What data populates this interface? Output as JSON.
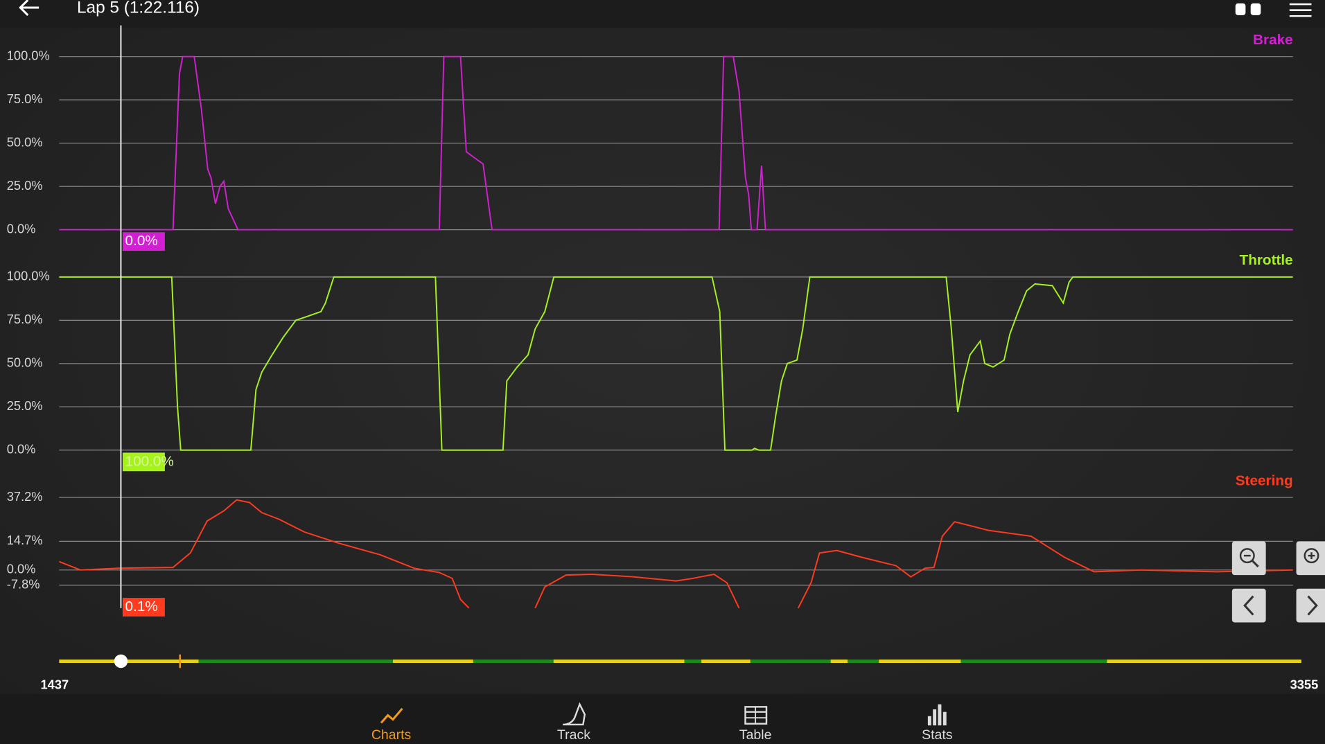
{
  "header": {
    "title": "Lap 5 (1:22.116)"
  },
  "cursor": {
    "x": 1533
  },
  "range": [
    1437,
    3355
  ],
  "nav": [
    "Charts",
    "Track",
    "Table",
    "Stats"
  ],
  "chart_data": [
    {
      "type": "line",
      "title": "Brake",
      "color": "#d21fd2",
      "xlim": [
        1437,
        3355
      ],
      "ylim": [
        0,
        100
      ],
      "yticks": [
        {
          "value": 0,
          "label": "0.0%"
        },
        {
          "value": 25,
          "label": "25.0%"
        },
        {
          "value": 50,
          "label": "50.0%"
        },
        {
          "value": 75,
          "label": "75.0%"
        },
        {
          "value": 100,
          "label": "100.0%"
        }
      ],
      "x": [
        1437,
        1614,
        1624,
        1629,
        1647,
        1658,
        1668,
        1673,
        1680,
        1687,
        1693,
        1700,
        1715,
        2028,
        2035,
        2061,
        2070,
        2081,
        2096,
        2110,
        2463,
        2470,
        2485,
        2494,
        2498,
        2504,
        2509,
        2513,
        2522,
        2529,
        2535,
        3355
      ],
      "values": [
        0,
        0,
        90,
        100,
        100,
        70,
        35,
        30,
        15,
        25,
        28,
        12,
        0,
        0,
        100,
        100,
        45,
        42,
        38,
        0,
        0,
        100,
        100,
        80,
        60,
        30,
        20,
        0,
        0,
        37,
        0,
        0
      ],
      "cursor": {
        "value": 0,
        "label": "0.0%"
      }
    },
    {
      "type": "line",
      "title": "Throttle",
      "color": "#a6f21d",
      "xlim": [
        1437,
        3355
      ],
      "ylim": [
        0,
        100
      ],
      "yticks": [
        {
          "value": 0,
          "label": "0.0%"
        },
        {
          "value": 25,
          "label": "25.0%"
        },
        {
          "value": 50,
          "label": "50.0%"
        },
        {
          "value": 75,
          "label": "75.0%"
        },
        {
          "value": 100,
          "label": "100.0%"
        }
      ],
      "x": [
        1437,
        1612,
        1621,
        1626,
        1735,
        1743,
        1752,
        1768,
        1785,
        1805,
        1821,
        1844,
        1851,
        1864,
        2022,
        2032,
        2127,
        2133,
        2149,
        2166,
        2177,
        2192,
        2206,
        2452,
        2464,
        2472,
        2514,
        2518,
        2525,
        2543,
        2551,
        2560,
        2569,
        2584,
        2593,
        2604,
        2816,
        2824,
        2834,
        2843,
        2853,
        2869,
        2876,
        2889,
        2906,
        2915,
        2928,
        2941,
        2954,
        2981,
        2998,
        3007,
        3013,
        3355
      ],
      "values": [
        100,
        100,
        25,
        0,
        0,
        35,
        45,
        55,
        65,
        75,
        77,
        80,
        85,
        100,
        100,
        0,
        0,
        40,
        48,
        55,
        70,
        80,
        100,
        100,
        80,
        0,
        0,
        1,
        0,
        0,
        20,
        40,
        50,
        52,
        70,
        100,
        100,
        70,
        22,
        40,
        55,
        63,
        50,
        48,
        52,
        67,
        80,
        92,
        96,
        95,
        85,
        97,
        100,
        100
      ],
      "cursor": {
        "value": 100,
        "label": "100.0%"
      }
    },
    {
      "type": "line",
      "title": "Steering",
      "color": "#ff3b1f",
      "xlim": [
        1437,
        3355
      ],
      "ylim": [
        -19.5,
        37.2
      ],
      "yticks": [
        {
          "value": -7.8,
          "label": "-7.8%"
        },
        {
          "value": 0,
          "label": "0.0%"
        },
        {
          "value": 14.7,
          "label": "14.7%"
        },
        {
          "value": 37.2,
          "label": "37.2%"
        }
      ],
      "x": [
        1437,
        1470,
        1529,
        1614,
        1641,
        1667,
        1693,
        1713,
        1733,
        1752,
        1779,
        1818,
        1871,
        1936,
        1989,
        2028,
        2048,
        2061,
        2074,
        2120,
        2177,
        2192,
        2225,
        2265,
        2330,
        2396,
        2422,
        2455,
        2475,
        2494,
        2540,
        2586,
        2606,
        2619,
        2646,
        2685,
        2738,
        2761,
        2783,
        2797,
        2810,
        2829,
        2882,
        2948,
        3000,
        3046,
        3118,
        3237,
        3355
      ],
      "values": [
        4.3,
        0,
        0.9,
        1.3,
        8.7,
        25.1,
        30.3,
        35.9,
        34.6,
        29.4,
        26,
        19.5,
        13.8,
        7.8,
        0.9,
        -1.3,
        -4.3,
        -15.1,
        -19.5,
        null,
        -19.5,
        -8.7,
        -2.6,
        -2.2,
        -3.5,
        -5.6,
        -4.3,
        -2.2,
        -6.5,
        -19.5,
        null,
        -19.5,
        -6.5,
        8.7,
        10,
        6.5,
        2.2,
        -3.5,
        0.9,
        1.3,
        17.3,
        24.7,
        20.3,
        17.3,
        6.5,
        -0.9,
        0,
        -0.9,
        0
      ],
      "cursor": {
        "value": 0.1,
        "label": "0.1%"
      }
    }
  ]
}
